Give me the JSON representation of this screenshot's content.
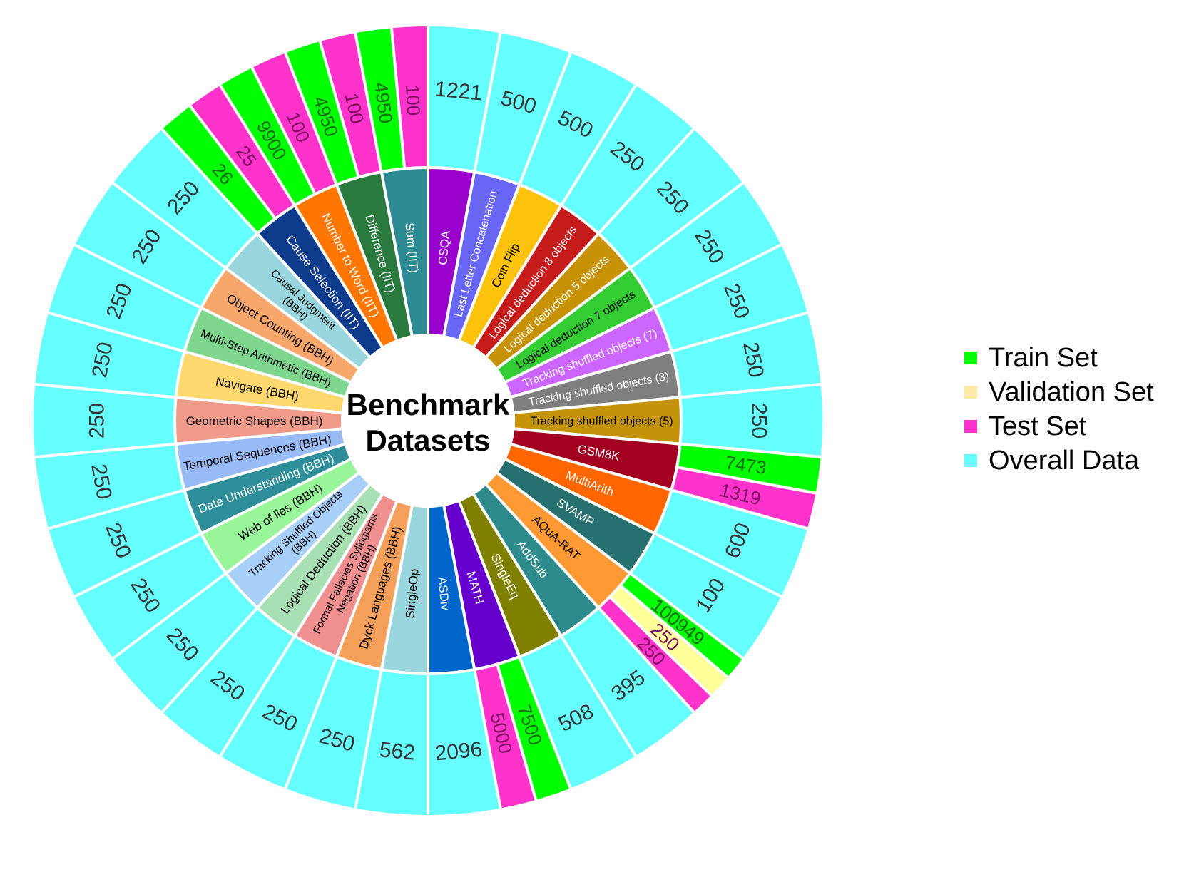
{
  "chart_data": {
    "type": "sunburst",
    "title": "Benchmark\nDatasets",
    "legend": {
      "placement": "right",
      "items": [
        {
          "label": "Train Set",
          "color": "#00ff00"
        },
        {
          "label": "Validation Set",
          "color": "#ffe9a6"
        },
        {
          "label": "Test Set",
          "color": "#ff33cc"
        },
        {
          "label": "Overall Data",
          "color": "#66ffff"
        }
      ]
    },
    "colors": {
      "train": "#00ff00",
      "validation": "#ffff99",
      "test": "#ff33cc",
      "overall": "#66ffff"
    },
    "datasets": [
      {
        "name": "CSQA",
        "color": "#9900cc",
        "label_color": "#ffffff",
        "splits": [
          {
            "type": "overall",
            "value": "1221"
          }
        ]
      },
      {
        "name": "Last Letter Concatenation",
        "color": "#6a66f5",
        "label_color": "#ffffff",
        "splits": [
          {
            "type": "overall",
            "value": "500"
          }
        ]
      },
      {
        "name": "Coin Flip",
        "color": "#fcc20c",
        "label_color": "#000000",
        "splits": [
          {
            "type": "overall",
            "value": "500"
          }
        ]
      },
      {
        "name": "Logical deduction 8 objects",
        "color": "#c51b1b",
        "label_color": "#ffffff",
        "splits": [
          {
            "type": "overall",
            "value": "250"
          }
        ]
      },
      {
        "name": "Logical deduction 5 objects",
        "color": "#c79206",
        "label_color": "#ffffff",
        "splits": [
          {
            "type": "overall",
            "value": "250"
          }
        ]
      },
      {
        "name": "Logical deduction 7 objects",
        "color": "#33cc33",
        "label_color": "#000000",
        "splits": [
          {
            "type": "overall",
            "value": "250"
          }
        ]
      },
      {
        "name": "Tracking shuffled objects (7)",
        "color": "#cc66ff",
        "label_color": "#ffffff",
        "splits": [
          {
            "type": "overall",
            "value": "250"
          }
        ]
      },
      {
        "name": "Tracking shuffled objects (3)",
        "color": "#7f7f7f",
        "label_color": "#ffffff",
        "splits": [
          {
            "type": "overall",
            "value": "250"
          }
        ]
      },
      {
        "name": "Tracking shuffled objects (5)",
        "color": "#c49308",
        "label_color": "#000000",
        "splits": [
          {
            "type": "overall",
            "value": "250"
          }
        ]
      },
      {
        "name": "GSM8K",
        "color": "#a40021",
        "label_color": "#ffffff",
        "splits": [
          {
            "type": "train",
            "value": "7473"
          },
          {
            "type": "test",
            "value": "1319"
          }
        ]
      },
      {
        "name": "MultiArith",
        "color": "#ff6600",
        "label_color": "#ffffff",
        "splits": [
          {
            "type": "overall",
            "value": "600"
          }
        ]
      },
      {
        "name": "SVAMP",
        "color": "#267070",
        "label_color": "#ffffff",
        "splits": [
          {
            "type": "overall",
            "value": "100"
          }
        ]
      },
      {
        "name": "AQuA-RAT",
        "color": "#ff9933",
        "label_color": "#000000",
        "splits": [
          {
            "type": "train",
            "value": "100949"
          },
          {
            "type": "validation",
            "value": "250"
          },
          {
            "type": "test",
            "value": "250"
          }
        ]
      },
      {
        "name": "AddSub",
        "color": "#2e8b8b",
        "label_color": "#ffffff",
        "splits": [
          {
            "type": "overall",
            "value": "395"
          }
        ]
      },
      {
        "name": "SingleEq",
        "color": "#808000",
        "label_color": "#ffffff",
        "splits": [
          {
            "type": "overall",
            "value": "508"
          }
        ]
      },
      {
        "name": "MATH",
        "color": "#6600cc",
        "label_color": "#ffffff",
        "splits": [
          {
            "type": "train",
            "value": "7500"
          },
          {
            "type": "test",
            "value": "5000"
          }
        ]
      },
      {
        "name": "ASDiv",
        "color": "#0066cc",
        "label_color": "#ffffff",
        "splits": [
          {
            "type": "overall",
            "value": "2096"
          }
        ]
      },
      {
        "name": "SingleOp",
        "color": "#99d6dd",
        "label_color": "#000000",
        "splits": [
          {
            "type": "overall",
            "value": "562"
          }
        ]
      },
      {
        "name": "Dyck Languages (BBH)",
        "color": "#f5a05a",
        "label_color": "#000000",
        "splits": [
          {
            "type": "overall",
            "value": "250"
          }
        ]
      },
      {
        "name": "Formal Fallacies Syllogisms\nNegation (BBH)",
        "color": "#ef8f8f",
        "label_color": "#000000",
        "splits": [
          {
            "type": "overall",
            "value": "250"
          }
        ]
      },
      {
        "name": "Logical Deduction (BBH)",
        "color": "#a8e0b4",
        "label_color": "#000000",
        "splits": [
          {
            "type": "overall",
            "value": "250"
          }
        ]
      },
      {
        "name": "Tracking Shuffled Objects\n(BBH)",
        "color": "#a8cff8",
        "label_color": "#000000",
        "splits": [
          {
            "type": "overall",
            "value": "250"
          }
        ]
      },
      {
        "name": "Web of lies (BBH)",
        "color": "#99f599",
        "label_color": "#000000",
        "splits": [
          {
            "type": "overall",
            "value": "250"
          }
        ]
      },
      {
        "name": "Date Understanding (BBH)",
        "color": "#2e8e99",
        "label_color": "#ffffff",
        "splits": [
          {
            "type": "overall",
            "value": "250"
          }
        ]
      },
      {
        "name": "Temporal Sequences (BBH)",
        "color": "#99bbf5",
        "label_color": "#000000",
        "splits": [
          {
            "type": "overall",
            "value": "250"
          }
        ]
      },
      {
        "name": "Geometric Shapes (BBH)",
        "color": "#f09a8a",
        "label_color": "#000000",
        "splits": [
          {
            "type": "overall",
            "value": "250"
          }
        ]
      },
      {
        "name": "Navigate (BBH)",
        "color": "#fcd86e",
        "label_color": "#000000",
        "splits": [
          {
            "type": "overall",
            "value": "250"
          }
        ]
      },
      {
        "name": "Multi-Step Arithmetic (BBH)",
        "color": "#7fd68f",
        "label_color": "#000000",
        "splits": [
          {
            "type": "overall",
            "value": "250"
          }
        ]
      },
      {
        "name": "Object Counting (BBH)",
        "color": "#f7a66c",
        "label_color": "#000000",
        "splits": [
          {
            "type": "overall",
            "value": "250"
          }
        ]
      },
      {
        "name": "Causal Judgment\n(BBH)",
        "color": "#99d6dd",
        "label_color": "#000000",
        "splits": [
          {
            "type": "overall",
            "value": "250"
          }
        ]
      },
      {
        "name": "Cause Selection (IIT)",
        "color": "#0f3b8c",
        "label_color": "#ffffff",
        "splits": [
          {
            "type": "train",
            "value": "26"
          },
          {
            "type": "test",
            "value": "25"
          }
        ]
      },
      {
        "name": "Number to Word (IIT)",
        "color": "#ff7700",
        "label_color": "#ffffff",
        "splits": [
          {
            "type": "train",
            "value": "9900"
          },
          {
            "type": "test",
            "value": "100"
          }
        ]
      },
      {
        "name": "Difference (IIT)",
        "color": "#2a7a3f",
        "label_color": "#ffffff",
        "splits": [
          {
            "type": "train",
            "value": "4950"
          },
          {
            "type": "test",
            "value": "100"
          }
        ]
      },
      {
        "name": "Sum (IIT)",
        "color": "#2e8b94",
        "label_color": "#ffffff",
        "splits": [
          {
            "type": "train",
            "value": "4950"
          },
          {
            "type": "test",
            "value": "100"
          }
        ]
      }
    ]
  }
}
